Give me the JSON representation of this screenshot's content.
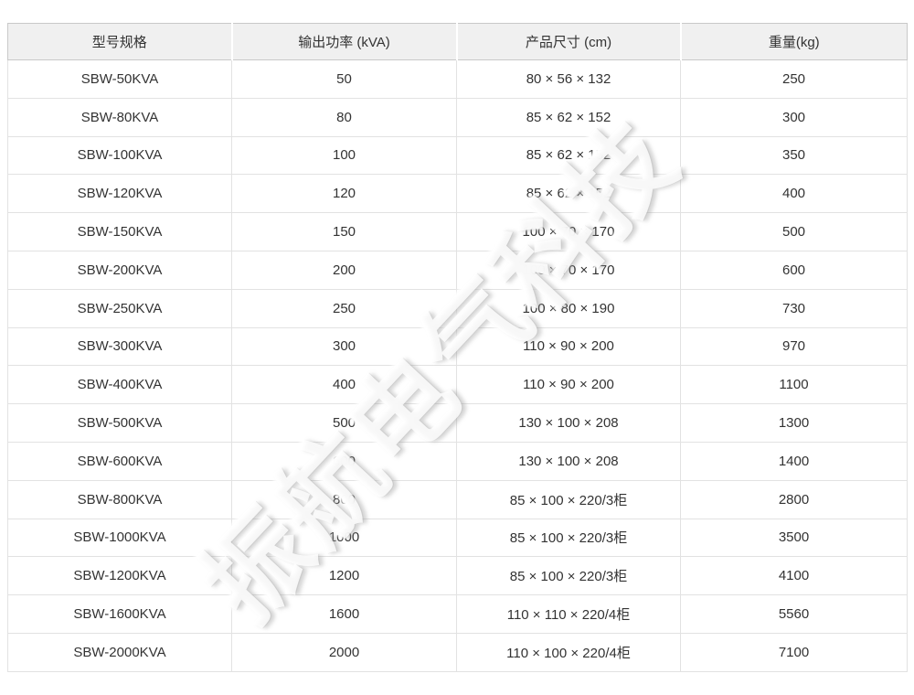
{
  "colors": {
    "header_bg": "#f0f0f0",
    "header_border": "#c9c9c9",
    "row_border": "#e2e2e2",
    "text_color": "#333333",
    "page_bg": "#ffffff"
  },
  "watermark": {
    "text": "振航电气科技"
  },
  "table": {
    "columns": [
      {
        "key": "model",
        "label": "型号规格"
      },
      {
        "key": "power",
        "label": "输出功率 (kVA)"
      },
      {
        "key": "size",
        "label": "产品尺寸 (cm)"
      },
      {
        "key": "weight",
        "label": "重量(kg)"
      }
    ],
    "rows": [
      {
        "model": "SBW-50KVA",
        "power": "50",
        "size": "80 × 56 × 132",
        "weight": "250"
      },
      {
        "model": "SBW-80KVA",
        "power": "80",
        "size": "85 × 62 × 152",
        "weight": "300"
      },
      {
        "model": "SBW-100KVA",
        "power": "100",
        "size": "85 × 62 × 152",
        "weight": "350"
      },
      {
        "model": "SBW-120KVA",
        "power": "120",
        "size": "85 × 62 × 152",
        "weight": "400"
      },
      {
        "model": "SBW-150KVA",
        "power": "150",
        "size": "100 × 70 × 170",
        "weight": "500"
      },
      {
        "model": "SBW-200KVA",
        "power": "200",
        "size": "100 × 70 × 170",
        "weight": "600"
      },
      {
        "model": "SBW-250KVA",
        "power": "250",
        "size": "100 × 80 × 190",
        "weight": "730"
      },
      {
        "model": "SBW-300KVA",
        "power": "300",
        "size": "110 × 90 × 200",
        "weight": "970"
      },
      {
        "model": "SBW-400KVA",
        "power": "400",
        "size": "110 × 90 × 200",
        "weight": "1100"
      },
      {
        "model": "SBW-500KVA",
        "power": "500",
        "size": "130 × 100 × 208",
        "weight": "1300"
      },
      {
        "model": "SBW-600KVA",
        "power": "600",
        "size": "130 × 100 × 208",
        "weight": "1400"
      },
      {
        "model": "SBW-800KVA",
        "power": "800",
        "size": "85 × 100 × 220/3柜",
        "weight": "2800"
      },
      {
        "model": "SBW-1000KVA",
        "power": "1000",
        "size": "85 × 100 × 220/3柜",
        "weight": "3500"
      },
      {
        "model": "SBW-1200KVA",
        "power": "1200",
        "size": "85 × 100 × 220/3柜",
        "weight": "4100"
      },
      {
        "model": "SBW-1600KVA",
        "power": "1600",
        "size": "110 × 110 × 220/4柜",
        "weight": "5560"
      },
      {
        "model": "SBW-2000KVA",
        "power": "2000",
        "size": "110 × 100 × 220/4柜",
        "weight": "7100"
      }
    ]
  }
}
